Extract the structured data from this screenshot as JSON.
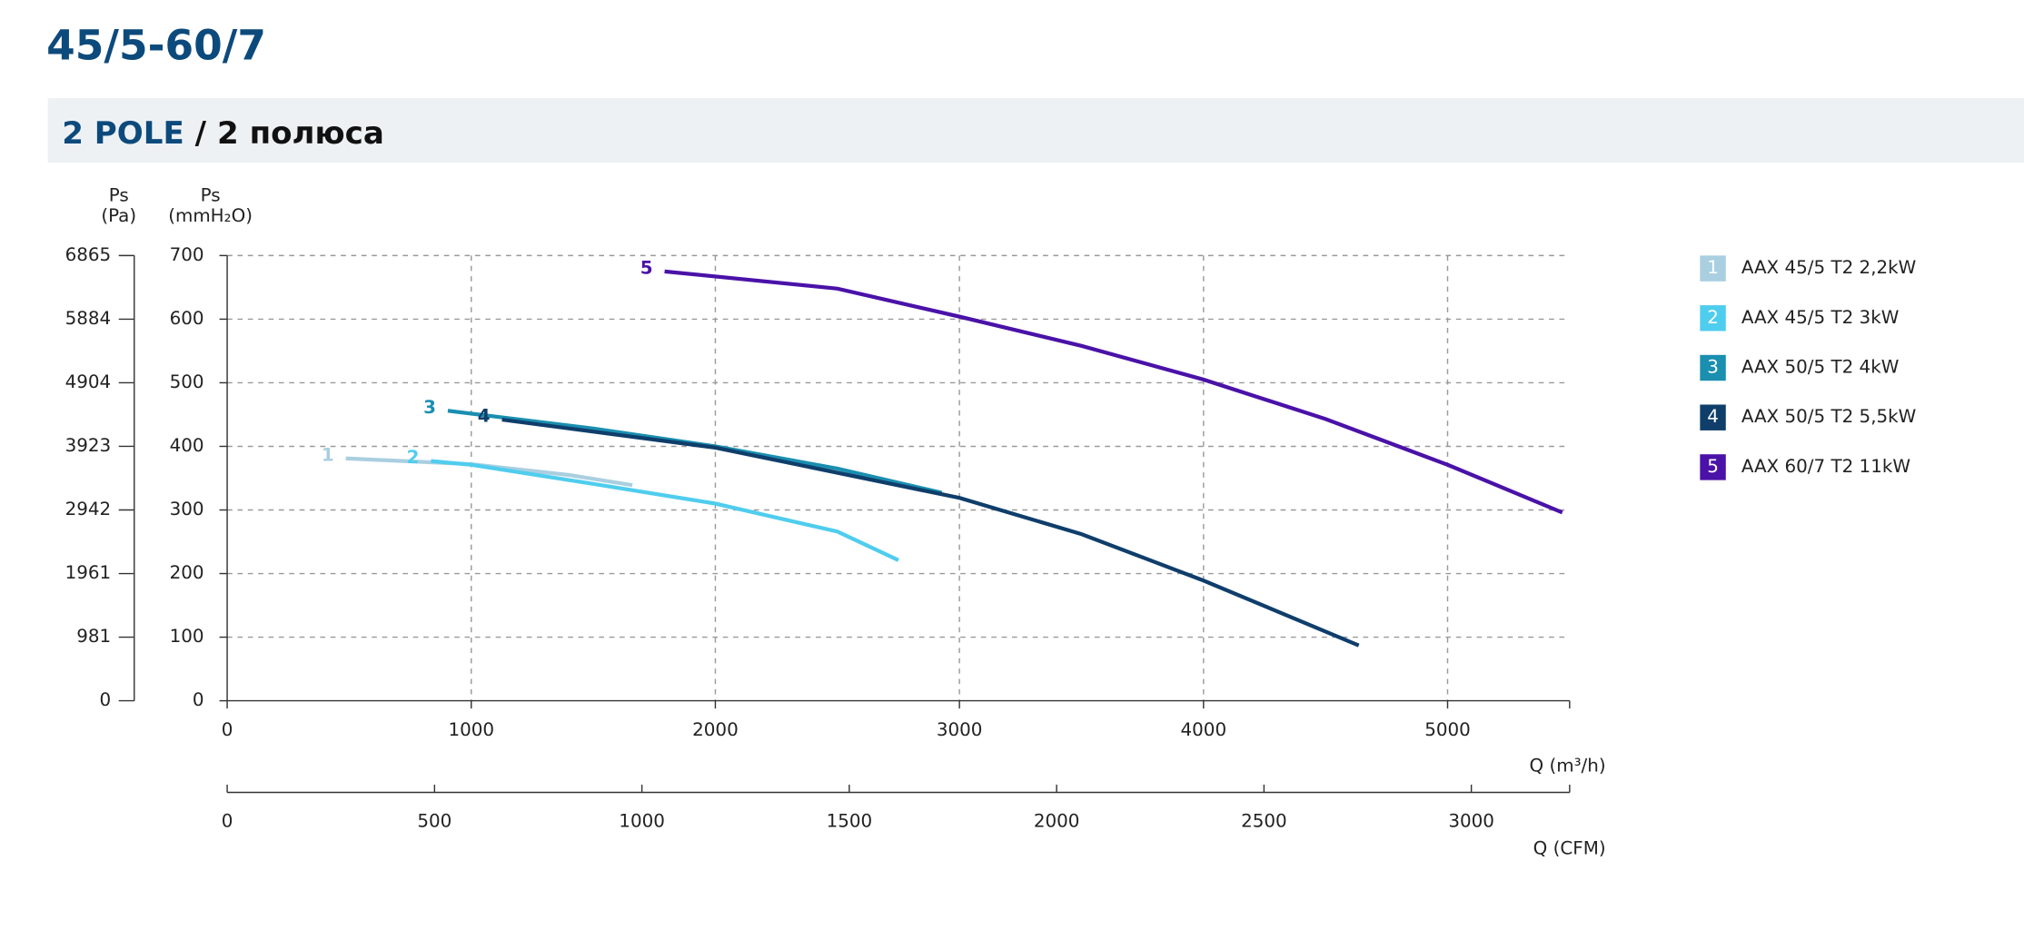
{
  "chart_data": {
    "type": "line",
    "title": "45/5-60/7",
    "subtitle_main": "2 POLE",
    "subtitle_rest": " / 2 полюса",
    "ylabel": "Ps",
    "ylabel_unit": "(mmH₂O)",
    "y2label": "Ps",
    "y2label_unit": "(Pa)",
    "xlabel": "Q (m³/h)",
    "x2label": "Q (CFM)",
    "xlim": [
      0,
      5500
    ],
    "xticks": [
      0,
      1000,
      2000,
      3000,
      4000,
      5000
    ],
    "ylim": [
      0,
      700
    ],
    "yticks": [
      0,
      100,
      200,
      300,
      400,
      500,
      600,
      700
    ],
    "y2lim": [
      0,
      6865
    ],
    "y2ticks": [
      0,
      981,
      1961,
      2942,
      3923,
      4904,
      5884,
      6865
    ],
    "x2lim": [
      0,
      3237
    ],
    "x2ticks": [
      0,
      500,
      1000,
      1500,
      2000,
      2500,
      3000
    ],
    "grid": true,
    "legend": "right",
    "series": [
      {
        "label": "1",
        "name": "AAX 45/5 T2 2,2kW",
        "color": "#a9cfe0",
        "x": [
          486,
          1000,
          1400,
          1660
        ],
        "values": [
          381,
          372,
          355,
          339
        ]
      },
      {
        "label": "2",
        "name": "AAX 45/5 T2 3kW",
        "color": "#4fcdee",
        "x": [
          835,
          1000,
          1500,
          2000,
          2500,
          2750
        ],
        "values": [
          377,
          371,
          341,
          310,
          266,
          221
        ]
      },
      {
        "label": "3",
        "name": "AAX 50/5 T2 4kW",
        "color": "#1a8fb0",
        "x": [
          904,
          1500,
          2000,
          2500,
          2928
        ],
        "values": [
          456,
          428,
          400,
          365,
          327
        ]
      },
      {
        "label": "4",
        "name": "AAX 50/5 T2 5,5kW",
        "color": "#0f3e6b",
        "x": [
          1126,
          2000,
          3000,
          3500,
          4000,
          4636
        ],
        "values": [
          442,
          398,
          319,
          262,
          189,
          87
        ]
      },
      {
        "label": "5",
        "name": "AAX 60/7 T2 11kW",
        "color": "#4a12a8",
        "x": [
          1792,
          2500,
          3000,
          3500,
          4000,
          4500,
          5000,
          5470
        ],
        "values": [
          675,
          648,
          604,
          558,
          505,
          443,
          371,
          296
        ]
      }
    ]
  }
}
